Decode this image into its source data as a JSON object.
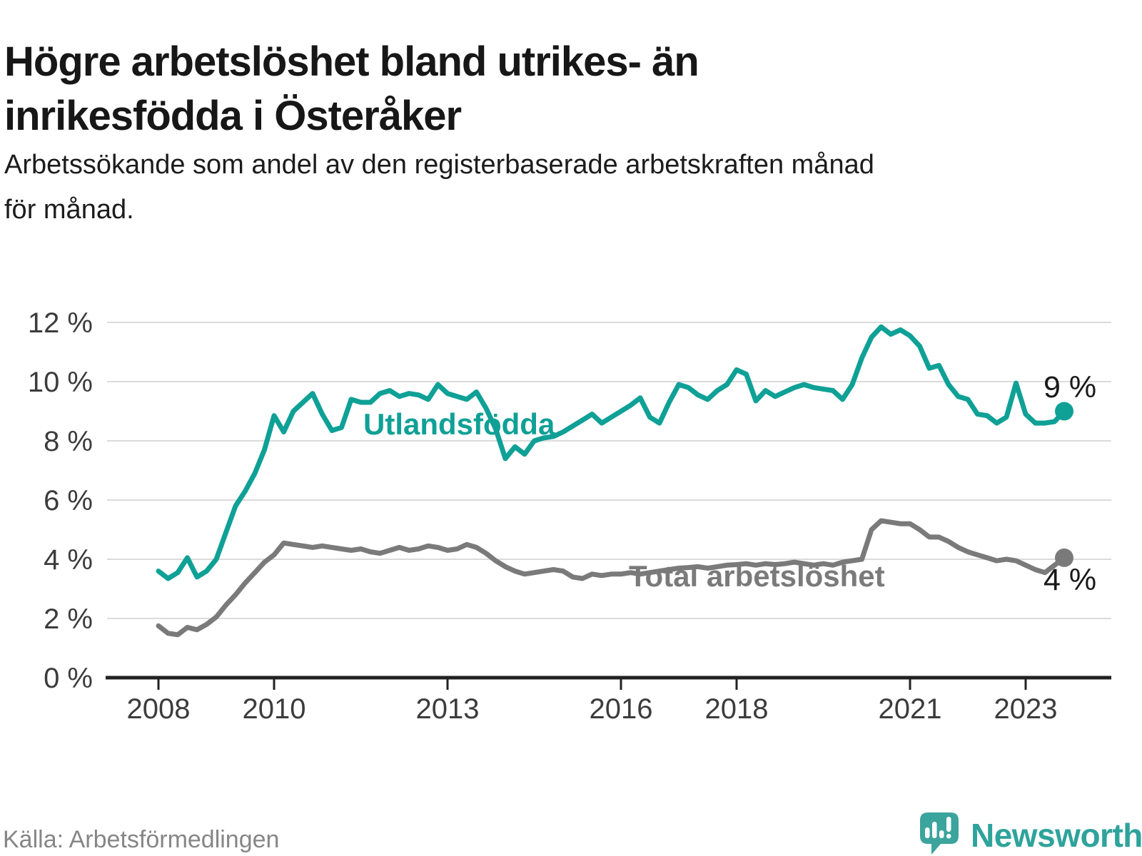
{
  "header": {
    "title_lines": [
      "Högre arbetslöshet bland utrikes- än",
      "inrikesfödda i Österåker"
    ],
    "subtitle_lines": [
      "Arbetssökande som andel av den registerbaserade arbetskraften månad",
      "för månad."
    ]
  },
  "chart_data": {
    "type": "line",
    "title": "Högre arbetslöshet bland utrikes- än inrikesfödda i Österåker",
    "xlabel": "",
    "ylabel": "",
    "grid": true,
    "legend_position": "inline",
    "x_start_year": 2008,
    "x_points_per_year": 6,
    "x_tick_years": [
      2008,
      2010,
      2013,
      2016,
      2018,
      2021,
      2023
    ],
    "y_tick_values": [
      0,
      2,
      4,
      6,
      8,
      10,
      12
    ],
    "y_tick_suffix": " %",
    "ylim": [
      0,
      12.4
    ],
    "series": [
      {
        "key": "utlandsfodda",
        "name": "Utlandsfödda",
        "color": "#0FA096",
        "end_label": "9 %",
        "end_value": 9,
        "values": [
          3.6,
          3.35,
          3.55,
          4.05,
          3.4,
          3.6,
          4.0,
          4.9,
          5.8,
          6.3,
          6.9,
          7.7,
          8.85,
          8.3,
          9.0,
          9.3,
          9.6,
          8.9,
          8.35,
          8.45,
          9.4,
          9.3,
          9.3,
          9.6,
          9.7,
          9.5,
          9.6,
          9.55,
          9.4,
          9.9,
          9.6,
          9.5,
          9.4,
          9.65,
          9.1,
          8.4,
          7.4,
          7.8,
          7.55,
          8.0,
          8.1,
          8.15,
          8.3,
          8.5,
          8.7,
          8.9,
          8.6,
          8.8,
          9.0,
          9.2,
          9.45,
          8.8,
          8.6,
          9.3,
          9.9,
          9.8,
          9.55,
          9.4,
          9.7,
          9.9,
          10.4,
          10.25,
          9.35,
          9.7,
          9.5,
          9.65,
          9.8,
          9.9,
          9.8,
          9.75,
          9.7,
          9.4,
          9.9,
          10.8,
          11.5,
          11.85,
          11.6,
          11.75,
          11.55,
          11.2,
          10.45,
          10.55,
          9.9,
          9.5,
          9.4,
          8.9,
          8.85,
          8.6,
          8.8,
          9.95,
          8.9,
          8.6,
          8.6,
          8.65,
          9.0
        ]
      },
      {
        "key": "total",
        "name": "Total arbetslöshet",
        "color": "#7A7A7A",
        "end_label": "4 %",
        "end_value": 4,
        "values": [
          1.75,
          1.5,
          1.45,
          1.7,
          1.62,
          1.8,
          2.05,
          2.45,
          2.8,
          3.2,
          3.55,
          3.9,
          4.15,
          4.55,
          4.5,
          4.45,
          4.4,
          4.45,
          4.4,
          4.35,
          4.3,
          4.35,
          4.25,
          4.2,
          4.3,
          4.4,
          4.3,
          4.35,
          4.45,
          4.4,
          4.3,
          4.35,
          4.5,
          4.4,
          4.2,
          3.95,
          3.75,
          3.6,
          3.5,
          3.55,
          3.6,
          3.65,
          3.6,
          3.4,
          3.35,
          3.5,
          3.45,
          3.5,
          3.5,
          3.55,
          3.5,
          3.55,
          3.6,
          3.65,
          3.7,
          3.72,
          3.75,
          3.7,
          3.75,
          3.8,
          3.82,
          3.85,
          3.8,
          3.85,
          3.82,
          3.85,
          3.9,
          3.85,
          3.8,
          3.85,
          3.8,
          3.9,
          3.95,
          4.0,
          5.0,
          5.3,
          5.25,
          5.2,
          5.2,
          5.0,
          4.75,
          4.75,
          4.6,
          4.4,
          4.25,
          4.15,
          4.05,
          3.95,
          4.0,
          3.95,
          3.8,
          3.65,
          3.55,
          3.8,
          4.05
        ]
      }
    ]
  },
  "colors": {
    "teal": "#0FA096",
    "gray_series": "#7A7A7A",
    "grid": "#DBDBDB",
    "axis": "#222222",
    "axis_text": "#3C3C3C",
    "end_label": "#191919",
    "title": "#171717",
    "subtitle": "#1C1C1C",
    "source": "#868686",
    "brand_icon": "#3BA49C",
    "brand_text": "#2EA39B"
  },
  "footer": {
    "source": "Källa: Arbetsförmedlingen",
    "brand": "Newsworthy"
  }
}
